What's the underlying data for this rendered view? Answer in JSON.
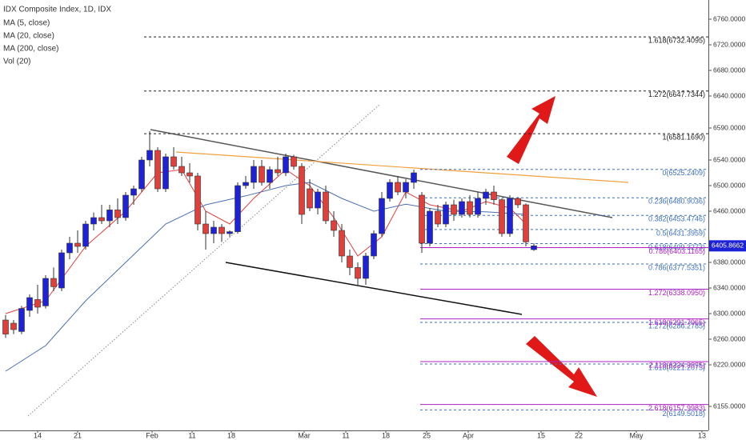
{
  "chart_data": {
    "type": "candlestick",
    "title": "IDX Composite Index, 1D, IDX",
    "other_indicators": [
      "MA (200, close)",
      "Vol (20)"
    ],
    "up_color": "#1e22d6",
    "down_color": "#e0403c",
    "xlim": [
      -0.7,
      87.8
    ],
    "xticks": [
      {
        "value": 4,
        "label": "14"
      },
      {
        "value": 9,
        "label": "21"
      },
      {
        "value": 18.3,
        "label": "Feb"
      },
      {
        "value": 23.3,
        "label": "11"
      },
      {
        "value": 28.2,
        "label": "18"
      },
      {
        "value": 37.3,
        "label": "Mar"
      },
      {
        "value": 42.5,
        "label": "11"
      },
      {
        "value": 47.5,
        "label": "18"
      },
      {
        "value": 52.6,
        "label": "25"
      },
      {
        "value": 57.8,
        "label": "Apr"
      },
      {
        "value": 66.9,
        "label": "15"
      },
      {
        "value": 71.6,
        "label": "22"
      },
      {
        "value": 78.8,
        "label": "May"
      },
      {
        "value": 87,
        "label": "13"
      }
    ],
    "ylim": [
      6117.5,
      6790
    ],
    "yticks": [
      {
        "value": 6760,
        "label": "6760.0000"
      },
      {
        "value": 6720,
        "label": "6720.0000"
      },
      {
        "value": 6680,
        "label": "6680.0000"
      },
      {
        "value": 6640,
        "label": "6640.0000"
      },
      {
        "value": 6590,
        "label": "6590.0000"
      },
      {
        "value": 6540,
        "label": "6540.0000"
      },
      {
        "value": 6500,
        "label": "6500.0000"
      },
      {
        "value": 6460,
        "label": "6460.0000"
      },
      {
        "value": 6380,
        "label": "6380.0000"
      },
      {
        "value": 6340,
        "label": "6340.0000"
      },
      {
        "value": 6300,
        "label": "6300.0000"
      },
      {
        "value": 6260,
        "label": "6260.0000"
      },
      {
        "value": 6220,
        "label": "6220.0000"
      },
      {
        "value": 6155,
        "label": "6155.0000"
      }
    ],
    "candles": {
      "open": [
        6290,
        6285,
        6272,
        6305,
        6322,
        6312,
        6355,
        6340,
        6395,
        6410,
        6405,
        6440,
        6450,
        6445,
        6462,
        6450,
        6485,
        6495,
        6540,
        6555,
        6495,
        6545,
        6530,
        6520,
        6515,
        6440,
        6425,
        6435,
        6425,
        6428,
        6500,
        6505,
        6530,
        6505,
        6525,
        6520,
        6545,
        6530,
        6495,
        6465,
        6490,
        6445,
        6430,
        6390,
        6372,
        6355,
        6390,
        6425,
        6480,
        6505,
        6490,
        6505,
        6485,
        6410,
        6460,
        6440,
        6470,
        6455,
        6475,
        6455,
        6480,
        6490,
        6478,
        6425,
        6480,
        6470,
        6400
      ],
      "high": [
        6298,
        6290,
        6312,
        6330,
        6345,
        6360,
        6372,
        6400,
        6420,
        6430,
        6445,
        6458,
        6470,
        6470,
        6480,
        6490,
        6500,
        6545,
        6585,
        6560,
        6550,
        6560,
        6545,
        6535,
        6520,
        6460,
        6445,
        6440,
        6430,
        6505,
        6515,
        6540,
        6540,
        6530,
        6545,
        6550,
        6548,
        6535,
        6510,
        6495,
        6500,
        6460,
        6440,
        6400,
        6380,
        6395,
        6430,
        6490,
        6510,
        6515,
        6510,
        6525,
        6490,
        6465,
        6470,
        6475,
        6478,
        6480,
        6485,
        6490,
        6495,
        6500,
        6480,
        6485,
        6482,
        6472,
        6410
      ],
      "low": [
        6262,
        6268,
        6268,
        6295,
        6300,
        6308,
        6335,
        6335,
        6385,
        6395,
        6400,
        6430,
        6440,
        6435,
        6440,
        6445,
        6470,
        6490,
        6530,
        6490,
        6490,
        6525,
        6515,
        6505,
        6430,
        6400,
        6410,
        6412,
        6420,
        6425,
        6495,
        6495,
        6500,
        6495,
        6515,
        6515,
        6525,
        6440,
        6460,
        6455,
        6440,
        6420,
        6380,
        6360,
        6345,
        6345,
        6385,
        6420,
        6475,
        6485,
        6480,
        6495,
        6395,
        6405,
        6435,
        6435,
        6445,
        6450,
        6450,
        6450,
        6470,
        6470,
        6420,
        6420,
        6465,
        6405,
        6398
      ],
      "close": [
        6268,
        6275,
        6308,
        6325,
        6310,
        6355,
        6342,
        6395,
        6410,
        6405,
        6440,
        6450,
        6445,
        6462,
        6450,
        6485,
        6495,
        6540,
        6555,
        6495,
        6545,
        6530,
        6520,
        6515,
        6440,
        6425,
        6435,
        6425,
        6428,
        6500,
        6505,
        6530,
        6505,
        6525,
        6520,
        6545,
        6530,
        6455,
        6465,
        6490,
        6445,
        6430,
        6390,
        6372,
        6355,
        6390,
        6425,
        6480,
        6505,
        6490,
        6505,
        6520,
        6410,
        6460,
        6440,
        6470,
        6455,
        6475,
        6455,
        6480,
        6490,
        6478,
        6425,
        6480,
        6470,
        6412,
        6405.8662
      ]
    },
    "series": [
      {
        "name": "MA (5, close)",
        "color": "#e0403c",
        "x": [
          0,
          5,
          10,
          15,
          19,
          22,
          25,
          28,
          31,
          35,
          38,
          41,
          44,
          47,
          50,
          53,
          57,
          60,
          63,
          65
        ],
        "values": [
          6300,
          6320,
          6405,
          6460,
          6520,
          6525,
          6460,
          6440,
          6480,
          6525,
          6500,
          6450,
          6390,
          6420,
          6490,
          6470,
          6460,
          6475,
          6465,
          6440
        ]
      },
      {
        "name": "MA (20, close)",
        "color": "#4a6fb0",
        "x": [
          0,
          5,
          10,
          15,
          20,
          25,
          30,
          35,
          38,
          42,
          46,
          50,
          55,
          60,
          65
        ],
        "values": [
          6210,
          6250,
          6320,
          6380,
          6440,
          6470,
          6484,
          6500,
          6505,
          6480,
          6460,
          6471,
          6460,
          6459,
          6455
        ]
      }
    ],
    "last_price": {
      "value": 6405.8662,
      "label": "6405.8662"
    },
    "levels": [
      {
        "label": "1.618(6732.4095)",
        "value": 6732.4095,
        "color": "#222222",
        "style": "dashed",
        "x_from": 17.3
      },
      {
        "label": "1.272(6647.7344)",
        "value": 6647.7344,
        "color": "#222222",
        "style": "dashed",
        "x_from": 17.3
      },
      {
        "label": "1(6581.1690)",
        "value": 6581.169,
        "color": "#222222",
        "style": "dashed",
        "x_from": 17.3
      },
      {
        "label": "0(6525.2409)",
        "value": 6525.2409,
        "color": "#3d6fc4",
        "style": "dashed",
        "x_from": 51.8
      },
      {
        "label": "0.236(6480.9036)",
        "value": 6480.9036,
        "color": "#3d6fc4",
        "style": "dashed",
        "x_from": 51.8
      },
      {
        "label": "0.382(6453.4746)",
        "value": 6453.4746,
        "color": "#3d6fc4",
        "style": "dashed",
        "x_from": 51.8
      },
      {
        "label": "0.5(6431.3959)",
        "value": 6431.3959,
        "color": "#3d6fc4",
        "style": "dashed",
        "x_from": 51.8
      },
      {
        "label": "0.618(6409.3273)",
        "value": 6409.3273,
        "color": "#3d6fc4",
        "style": "dashed",
        "x_from": 51.8
      },
      {
        "label": "0.786(6377.5351)",
        "value": 6377.5351,
        "color": "#3d6fc4",
        "style": "dashed",
        "x_from": 51.8
      },
      {
        "label": "1.272(6286.2785)",
        "value": 6286.2785,
        "color": "#3d6fc4",
        "style": "dashed",
        "x_from": 51.8
      },
      {
        "label": "1.618(6221.2075)",
        "value": 6221.2075,
        "color": "#3d6fc4",
        "style": "dashed",
        "x_from": 51.8
      },
      {
        "label": "2(6149.5018)",
        "value": 6149.5018,
        "color": "#3d6fc4",
        "style": "dashed",
        "x_from": 51.8
      },
      {
        "label": "0.786(6403.1165)",
        "value": 6403.1165,
        "color": "#b020c8",
        "style": "solid",
        "x_from": 51.8
      },
      {
        "label": "1.272(6338.0950)",
        "value": 6338.095,
        "color": "#b020c8",
        "style": "solid",
        "x_from": 51.8
      },
      {
        "label": "1.618(6291.7965)",
        "value": 6291.7965,
        "color": "#b020c8",
        "style": "solid",
        "x_from": 51.8
      },
      {
        "label": "2.118(6224.9875)",
        "value": 6224.9875,
        "color": "#b020c8",
        "style": "solid",
        "x_from": 51.8
      },
      {
        "label": "2.618(6157.9983)",
        "value": 6157.9983,
        "color": "#b020c8",
        "style": "solid",
        "x_from": 51.8
      }
    ]
  }
}
